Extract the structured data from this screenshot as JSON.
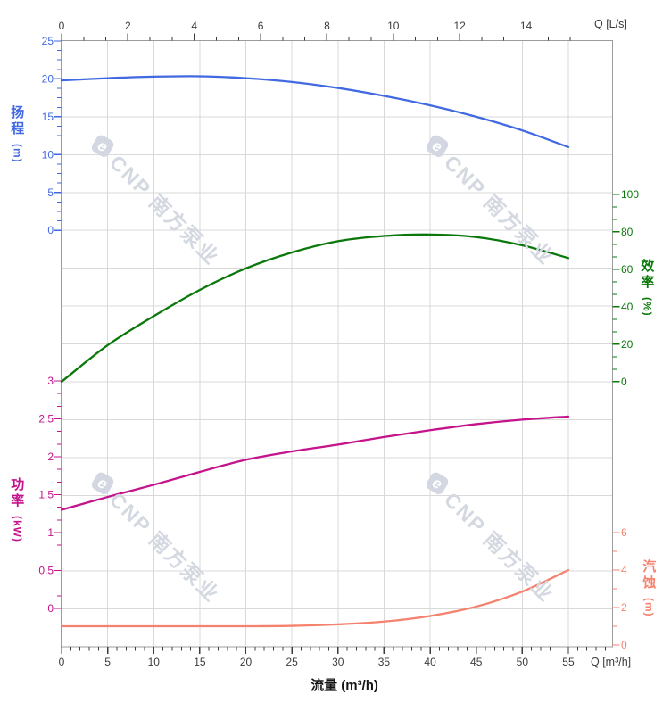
{
  "watermark": {
    "logo_letter": "e",
    "text": "CNP 南方泵业"
  },
  "chart_data": {
    "type": "line",
    "title": "",
    "grid": "on",
    "x_axes": {
      "top": {
        "unit_label": "Q [L/s]",
        "tick_labels": [
          "0",
          "2",
          "4",
          "6",
          "8",
          "10",
          "12",
          "14"
        ]
      },
      "bottom": {
        "title": "流量 (m³/h)",
        "unit_label": "Q [m³/h]",
        "tick_labels": [
          "0",
          "5",
          "10",
          "15",
          "20",
          "25",
          "30",
          "35",
          "40",
          "45",
          "50",
          "55"
        ]
      }
    },
    "y_axes": {
      "head": {
        "title": "扬程",
        "unit": "(m)",
        "side": "left",
        "color": "#4169E1",
        "tick_labels": [
          "25",
          "20",
          "15",
          "10",
          "5",
          "0"
        ]
      },
      "efficiency": {
        "title": "效率",
        "unit": "(%)",
        "side": "right",
        "color": "#0A780A",
        "tick_labels": [
          "100",
          "80",
          "60",
          "40",
          "20",
          "0"
        ]
      },
      "power": {
        "title": "功率",
        "unit": "(kW)",
        "side": "left",
        "color": "#C4138B",
        "tick_labels": [
          "3",
          "2.5",
          "2",
          "1.5",
          "1",
          "0.5",
          "0"
        ]
      },
      "npsh": {
        "title": "汽蚀",
        "unit": "(m)",
        "side": "right",
        "color": "#F5826E",
        "tick_labels": [
          "6",
          "4",
          "2",
          "0"
        ]
      }
    },
    "series": [
      {
        "axis": "head",
        "color": "#4169E1",
        "x_unit": "m³/h",
        "y_unit": "m",
        "points": [
          [
            0,
            19.8
          ],
          [
            5,
            20.1
          ],
          [
            10,
            20.3
          ],
          [
            15,
            20.35
          ],
          [
            20,
            20.1
          ],
          [
            25,
            19.6
          ],
          [
            30,
            18.8
          ],
          [
            35,
            17.75
          ],
          [
            40,
            16.5
          ],
          [
            45,
            15.0
          ],
          [
            50,
            13.2
          ],
          [
            55,
            11.0
          ]
        ]
      },
      {
        "axis": "efficiency",
        "color": "#0A780A",
        "x_unit": "m³/h",
        "y_unit": "%",
        "points": [
          [
            0,
            0
          ],
          [
            5,
            19.5
          ],
          [
            10,
            35
          ],
          [
            15,
            49
          ],
          [
            20,
            60.5
          ],
          [
            25,
            69
          ],
          [
            30,
            75
          ],
          [
            35,
            77.8
          ],
          [
            40,
            78.6
          ],
          [
            45,
            77.2
          ],
          [
            50,
            72.8
          ],
          [
            55,
            66
          ]
        ]
      },
      {
        "axis": "power",
        "color": "#C4138B",
        "x_unit": "m³/h",
        "y_unit": "kW",
        "points": [
          [
            0,
            1.3
          ],
          [
            5,
            1.47
          ],
          [
            10,
            1.63
          ],
          [
            15,
            1.8
          ],
          [
            20,
            1.96
          ],
          [
            25,
            2.07
          ],
          [
            30,
            2.16
          ],
          [
            35,
            2.26
          ],
          [
            40,
            2.35
          ],
          [
            45,
            2.43
          ],
          [
            50,
            2.49
          ],
          [
            55,
            2.53
          ]
        ]
      },
      {
        "axis": "npsh",
        "color": "#F5826E",
        "x_unit": "m³/h",
        "y_unit": "m",
        "points": [
          [
            0,
            1.0
          ],
          [
            5,
            1.0
          ],
          [
            10,
            1.0
          ],
          [
            15,
            1.0
          ],
          [
            20,
            1.0
          ],
          [
            25,
            1.02
          ],
          [
            30,
            1.1
          ],
          [
            35,
            1.25
          ],
          [
            40,
            1.55
          ],
          [
            45,
            2.05
          ],
          [
            50,
            2.85
          ],
          [
            55,
            4.0
          ]
        ]
      }
    ]
  }
}
